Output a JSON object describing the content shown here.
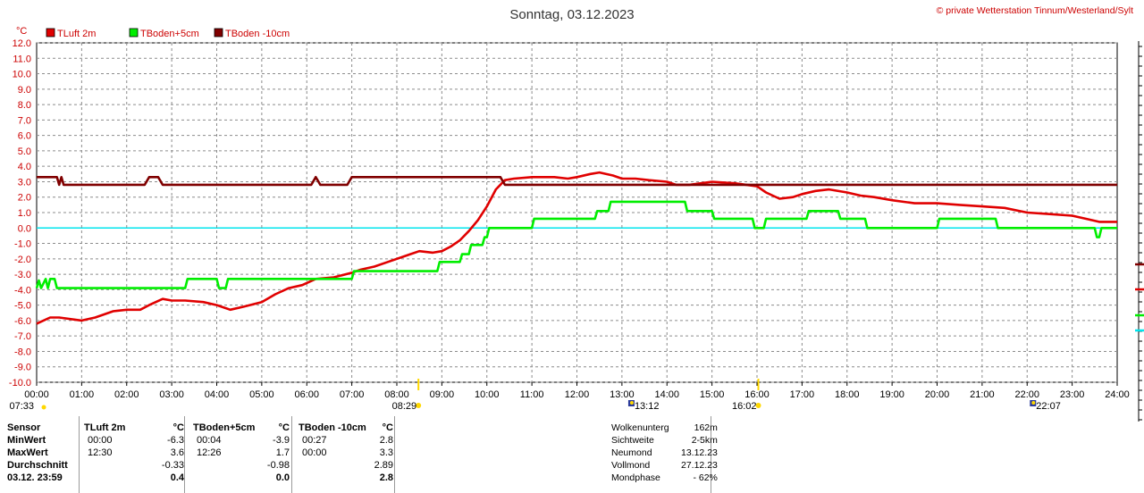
{
  "chart_data": {
    "type": "line",
    "title": "Sonntag, 03.12.2023",
    "copyright": "© private Wetterstation Tinnum/Westerland/Sylt",
    "ylabel": "°C",
    "ylim": [
      -10,
      12
    ],
    "xlim": [
      0,
      24
    ],
    "grid": true,
    "legend_position": "top-left",
    "y_ticks": [
      "-10.0",
      "-9.0",
      "-8.0",
      "-7.0",
      "-6.0",
      "-5.0",
      "-4.0",
      "-3.0",
      "-2.0",
      "-1.0",
      "0.0",
      "1.0",
      "2.0",
      "3.0",
      "4.0",
      "5.0",
      "6.0",
      "7.0",
      "8.0",
      "9.0",
      "10.0",
      "11.0",
      "12.0"
    ],
    "x_ticks": [
      "00:00",
      "01:00",
      "02:00",
      "03:00",
      "04:00",
      "05:00",
      "06:00",
      "07:00",
      "08:00",
      "09:00",
      "10:00",
      "11:00",
      "12:00",
      "13:00",
      "14:00",
      "15:00",
      "16:00",
      "17:00",
      "18:00",
      "19:00",
      "20:00",
      "21:00",
      "22:00",
      "23:00",
      "24:00"
    ],
    "zero_line_color": "#00e5ee",
    "series": [
      {
        "name": "TLuft 2m",
        "color": "#e00000",
        "x": [
          0,
          0.3,
          0.5,
          1,
          1.3,
          1.7,
          2,
          2.3,
          2.5,
          2.8,
          3,
          3.3,
          3.7,
          4,
          4.3,
          4.6,
          5,
          5.3,
          5.6,
          5.9,
          6.2,
          6.6,
          7,
          7.2,
          7.5,
          7.8,
          8.1,
          8.3,
          8.5,
          8.8,
          9,
          9.2,
          9.4,
          9.6,
          9.8,
          10,
          10.2,
          10.4,
          10.6,
          11,
          11.5,
          11.8,
          12,
          12.3,
          12.5,
          12.8,
          13,
          13.3,
          13.6,
          14,
          14.2,
          14.5,
          15,
          15.5,
          16,
          16.2,
          16.5,
          16.8,
          17,
          17.3,
          17.6,
          18,
          18.3,
          18.6,
          19,
          19.5,
          20,
          20.5,
          21,
          21.5,
          22,
          22.5,
          23,
          23.3,
          23.6,
          24
        ],
        "y": [
          -6.2,
          -5.8,
          -5.8,
          -6,
          -5.8,
          -5.4,
          -5.3,
          -5.3,
          -5,
          -4.6,
          -4.7,
          -4.7,
          -4.8,
          -5,
          -5.3,
          -5.1,
          -4.8,
          -4.3,
          -3.9,
          -3.7,
          -3.3,
          -3.2,
          -2.9,
          -2.7,
          -2.5,
          -2.2,
          -1.9,
          -1.7,
          -1.5,
          -1.6,
          -1.5,
          -1.2,
          -0.8,
          -0.2,
          0.5,
          1.4,
          2.5,
          3.1,
          3.2,
          3.3,
          3.3,
          3.2,
          3.3,
          3.5,
          3.6,
          3.4,
          3.2,
          3.2,
          3.1,
          3,
          2.8,
          2.8,
          3,
          2.9,
          2.7,
          2.3,
          1.9,
          2,
          2.2,
          2.4,
          2.5,
          2.3,
          2.1,
          2,
          1.8,
          1.6,
          1.6,
          1.5,
          1.4,
          1.3,
          1.0,
          0.9,
          0.8,
          0.6,
          0.4,
          0.4
        ]
      },
      {
        "name": "TBoden+5cm",
        "color": "#00ee00",
        "x": [
          0,
          0.05,
          0.1,
          0.2,
          0.25,
          0.3,
          0.4,
          0.45,
          3.3,
          3.35,
          4,
          4.05,
          4.2,
          4.25,
          7,
          7.05,
          8.9,
          8.95,
          9.4,
          9.45,
          9.6,
          9.65,
          9.9,
          9.95,
          10,
          10.05,
          11,
          11.05,
          12.4,
          12.45,
          12.7,
          12.75,
          14.4,
          14.45,
          15,
          15.05,
          15.9,
          15.95,
          16.15,
          16.2,
          16.25,
          17.1,
          17.15,
          17.8,
          17.85,
          18.4,
          18.45,
          20,
          20.05,
          21.3,
          21.35,
          23.5,
          23.55,
          23.6,
          23.65,
          24
        ],
        "y": [
          -3.9,
          -3.4,
          -3.9,
          -3.3,
          -3.9,
          -3.3,
          -3.3,
          -3.9,
          -3.9,
          -3.3,
          -3.3,
          -3.9,
          -3.9,
          -3.3,
          -3.3,
          -2.8,
          -2.8,
          -2.2,
          -2.2,
          -1.7,
          -1.7,
          -1.1,
          -1.1,
          -0.6,
          -0.6,
          0,
          0,
          0.6,
          0.6,
          1.1,
          1.1,
          1.7,
          1.7,
          1.1,
          1.1,
          0.6,
          0.6,
          0,
          0,
          0.6,
          0.6,
          0.6,
          1.1,
          1.1,
          0.6,
          0.6,
          0,
          0,
          0.6,
          0.6,
          0,
          0,
          -0.6,
          -0.6,
          0,
          0
        ]
      },
      {
        "name": "TBoden -10cm",
        "color": "#800000",
        "x": [
          0,
          0.45,
          0.5,
          0.55,
          0.6,
          2.4,
          2.5,
          2.6,
          2.7,
          2.8,
          6.1,
          6.2,
          6.3,
          6.9,
          7,
          10.3,
          10.4,
          24
        ],
        "y": [
          3.3,
          3.3,
          2.8,
          3.3,
          2.8,
          2.8,
          3.3,
          3.3,
          3.3,
          2.8,
          2.8,
          3.3,
          2.8,
          2.8,
          3.3,
          3.3,
          2.8,
          2.8
        ]
      }
    ],
    "event_markers": [
      {
        "time": "07:33",
        "x": 0.1,
        "type": "sunrise"
      },
      {
        "time": "08:29",
        "x": 8.48,
        "type": "sun"
      },
      {
        "time": "13:12",
        "x": 13.2,
        "type": "moon"
      },
      {
        "time": "16:02",
        "x": 16.03,
        "type": "sun"
      },
      {
        "time": "22:07",
        "x": 22.12,
        "type": "moon"
      }
    ]
  },
  "stats": {
    "headers": {
      "sensor": "Sensor",
      "s1": "TLuft 2m",
      "s2": "TBoden+5cm",
      "s3": "TBoden -10cm",
      "unit": "°C"
    },
    "rows": [
      {
        "label": "MinWert",
        "t1": "00:00",
        "v1": "-6.3",
        "t2": "00:04",
        "v2": "-3.9",
        "t3": "00:27",
        "v3": "2.8"
      },
      {
        "label": "MaxWert",
        "t1": "12:30",
        "v1": "3.6",
        "t2": "12:26",
        "v2": "1.7",
        "t3": "00:00",
        "v3": "3.3"
      },
      {
        "label": "Durchschnitt",
        "t1": "",
        "v1": "-0.33",
        "t2": "",
        "v2": "-0.98",
        "t3": "",
        "v3": "2.89"
      },
      {
        "label": "03.12. 23:59",
        "t1": "",
        "v1": "0.4",
        "t2": "",
        "v2": "0.0",
        "t3": "",
        "v3": "2.8"
      }
    ]
  },
  "info": [
    {
      "label": "Wolkenunterg",
      "value": "162m"
    },
    {
      "label": "Sichtweite",
      "value": "2-5km"
    },
    {
      "label": "Neumond",
      "value": "13.12.23"
    },
    {
      "label": "Vollmond",
      "value": "27.12.23"
    },
    {
      "label": "Mondphase",
      "value": "- 62%"
    }
  ]
}
